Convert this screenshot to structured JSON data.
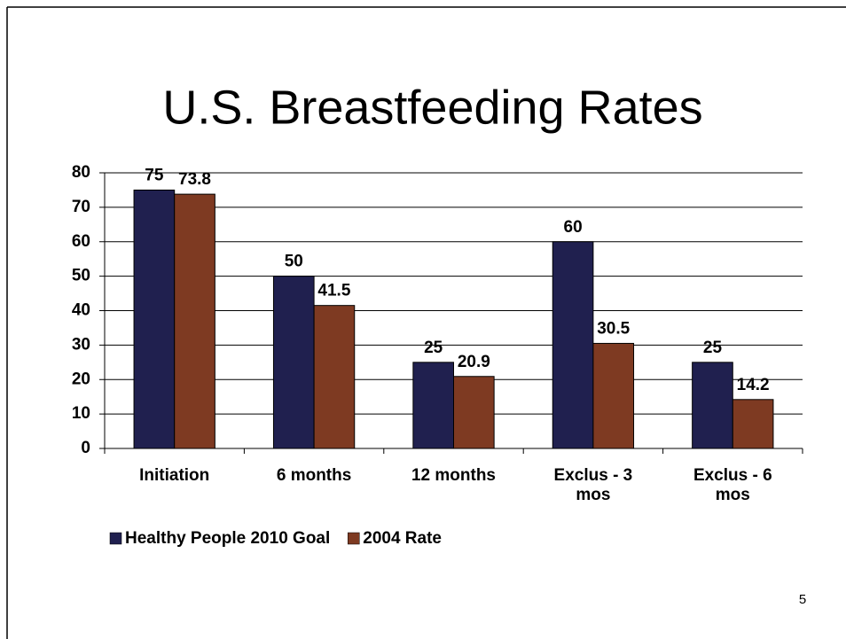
{
  "chart_data": {
    "type": "bar",
    "title": "U.S. Breastfeeding Rates",
    "categories": [
      "Initiation",
      "6 months",
      "12 months",
      "Exclus - 3 mos",
      "Exclus - 6 mos"
    ],
    "series": [
      {
        "name": "Healthy People 2010 Goal",
        "color": "#20204f",
        "values": [
          75,
          50,
          25,
          60,
          25
        ]
      },
      {
        "name": "2004 Rate",
        "color": "#7e3a22",
        "values": [
          73.8,
          41.5,
          20.9,
          30.5,
          14.2
        ]
      }
    ],
    "ylim": [
      0,
      80
    ],
    "yticks": [
      0,
      10,
      20,
      30,
      40,
      50,
      60,
      70,
      80
    ],
    "grid": true,
    "legend": "bottom"
  },
  "slide_number": "5"
}
